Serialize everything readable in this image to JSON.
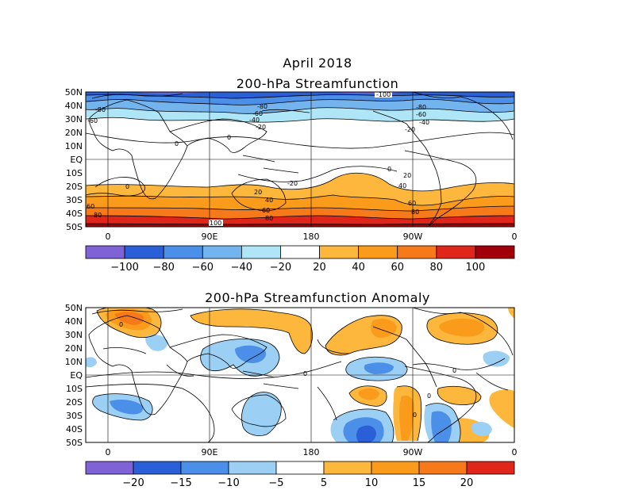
{
  "header": {
    "title": "April 2018",
    "map1_title": "200-hPa Streamfunction",
    "map2_title": "200-hPa Streamfunction Anomaly"
  },
  "lat_labels": [
    "50N",
    "40N",
    "30N",
    "20N",
    "10N",
    "EQ",
    "10S",
    "20S",
    "30S",
    "40S",
    "50S"
  ],
  "lon_labels": [
    "0",
    "90E",
    "180",
    "90W",
    "0"
  ],
  "legend1": {
    "labels": [
      "-100",
      "-80",
      "-60",
      "-40",
      "-20",
      "20",
      "40",
      "60",
      "80",
      "100"
    ],
    "colors": [
      "#7f62d6",
      "#2b5fd8",
      "#4b8fe8",
      "#74b4ee",
      "#aee6f8",
      "#ffffff",
      "#fdb73c",
      "#fb9b1c",
      "#f6791a",
      "#e0261a",
      "#a1000a"
    ]
  },
  "legend2": {
    "labels": [
      "-20",
      "-15",
      "-10",
      "-5",
      "5",
      "10",
      "15",
      "20"
    ],
    "colors": [
      "#7f62d6",
      "#2b5fd8",
      "#4b8fe8",
      "#9ccff4",
      "#ffffff",
      "#fdb73c",
      "#fb9b1c",
      "#f6791a",
      "#e0261a"
    ]
  },
  "map1_contour_labels": [
    "-100",
    "-80",
    "-60",
    "-40",
    "-20",
    "0",
    "20",
    "40",
    "60",
    "80",
    "100",
    "-80",
    "-60",
    "-40",
    "-20",
    "-80",
    "-60",
    "-40",
    "-20",
    "0",
    "0",
    "0",
    "-20",
    "-40",
    "-60",
    "-80",
    "20",
    "40",
    "60",
    "80",
    "20",
    "-40",
    "-60",
    "-80"
  ],
  "map2_contour_labels": [
    "0",
    "0",
    "0",
    "0",
    "0"
  ]
}
